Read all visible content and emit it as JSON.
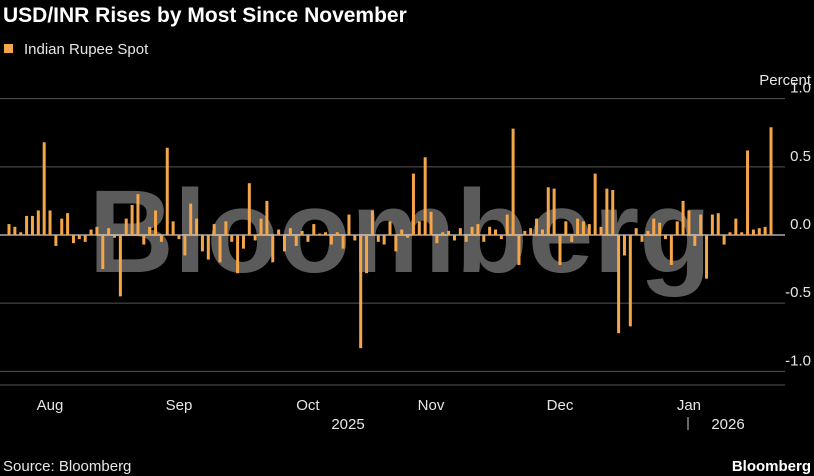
{
  "chart_data": {
    "type": "bar",
    "title": "USD/INR Rises by Most Since November",
    "series": [
      {
        "name": "Indian Rupee Spot",
        "color": "#f5a54a",
        "values": [
          0.08,
          0.06,
          0.02,
          0.14,
          0.14,
          0.18,
          0.68,
          0.18,
          -0.08,
          0.12,
          0.16,
          -0.06,
          -0.03,
          -0.05,
          0.04,
          0.06,
          -0.25,
          0.05,
          -0.02,
          -0.45,
          0.12,
          0.22,
          0.3,
          -0.07,
          0.06,
          0.18,
          -0.05,
          0.64,
          0.1,
          -0.03,
          -0.15,
          0.23,
          0.12,
          -0.12,
          -0.18,
          0.08,
          -0.2,
          0.1,
          -0.05,
          -0.28,
          -0.1,
          0.38,
          -0.04,
          0.12,
          0.25,
          -0.2,
          0.04,
          -0.12,
          0.05,
          -0.08,
          0.03,
          -0.05,
          0.08,
          0.01,
          0.02,
          -0.07,
          0.02,
          -0.1,
          0.15,
          -0.04,
          -0.83,
          -0.28,
          0.18,
          -0.05,
          -0.07,
          0.1,
          -0.12,
          0.04,
          -0.02,
          0.45,
          0.1,
          0.57,
          0.17,
          -0.06,
          0.02,
          0.03,
          -0.04,
          0.05,
          -0.05,
          0.06,
          0.08,
          -0.05,
          0.06,
          0.04,
          -0.03,
          0.15,
          0.78,
          -0.22,
          0.03,
          0.05,
          0.12,
          0.04,
          0.35,
          0.34,
          -0.22,
          0.1,
          -0.05,
          0.12,
          0.1,
          0.08,
          0.45,
          0.06,
          0.34,
          0.33,
          -0.72,
          -0.15,
          -0.67,
          0.05,
          -0.05,
          0.03,
          0.12,
          0.09,
          -0.03,
          -0.22,
          0.1,
          0.25,
          0.18,
          -0.08,
          0.15,
          -0.32,
          0.15,
          0.16,
          -0.07,
          0.02,
          0.12,
          0.02,
          0.62,
          0.04,
          0.05,
          0.06,
          0.79
        ]
      }
    ],
    "categories": [
      null,
      null,
      null,
      null,
      null,
      null,
      null,
      "Aug",
      null,
      null,
      null,
      null,
      null,
      null,
      null,
      null,
      null,
      null,
      null,
      null,
      null,
      null,
      null,
      null,
      null,
      null,
      null,
      null,
      null,
      "Sep",
      null,
      null,
      null,
      null,
      null,
      null,
      null,
      null,
      null,
      null,
      null,
      null,
      null,
      null,
      null,
      null,
      null,
      null,
      null,
      null,
      null,
      "Oct",
      null,
      null,
      null,
      null,
      null,
      null,
      null,
      null,
      null,
      null,
      null,
      null,
      null,
      null,
      null,
      null,
      null,
      null,
      null,
      null,
      "Nov",
      null,
      null,
      null,
      null,
      null,
      null,
      null,
      null,
      null,
      null,
      null,
      null,
      null,
      null,
      null,
      null,
      null,
      null,
      null,
      null,
      null,
      "Dec",
      null,
      null,
      null,
      null,
      null,
      null,
      null,
      null,
      null,
      null,
      null,
      null,
      null,
      null,
      null,
      null,
      null,
      null,
      null,
      null,
      null,
      "Jan",
      null,
      null,
      null,
      null,
      null,
      null,
      null,
      null,
      null,
      null,
      null,
      null,
      null,
      null
    ],
    "years": [
      "2025",
      "2026"
    ],
    "y_axis_label": "Percent",
    "ylim": [
      -1.1,
      1.1
    ],
    "yticks": [
      {
        "value": 1,
        "label": "1.0"
      },
      {
        "value": 0.5,
        "label": "0.5"
      },
      {
        "value": 0,
        "label": "0.0"
      },
      {
        "value": -0.5,
        "label": "-0.5"
      },
      {
        "value": -1,
        "label": "-1.0"
      }
    ],
    "grid": true,
    "source": "Source: Bloomberg",
    "watermark": "Bloomberg",
    "logo": "Bloomberg"
  }
}
